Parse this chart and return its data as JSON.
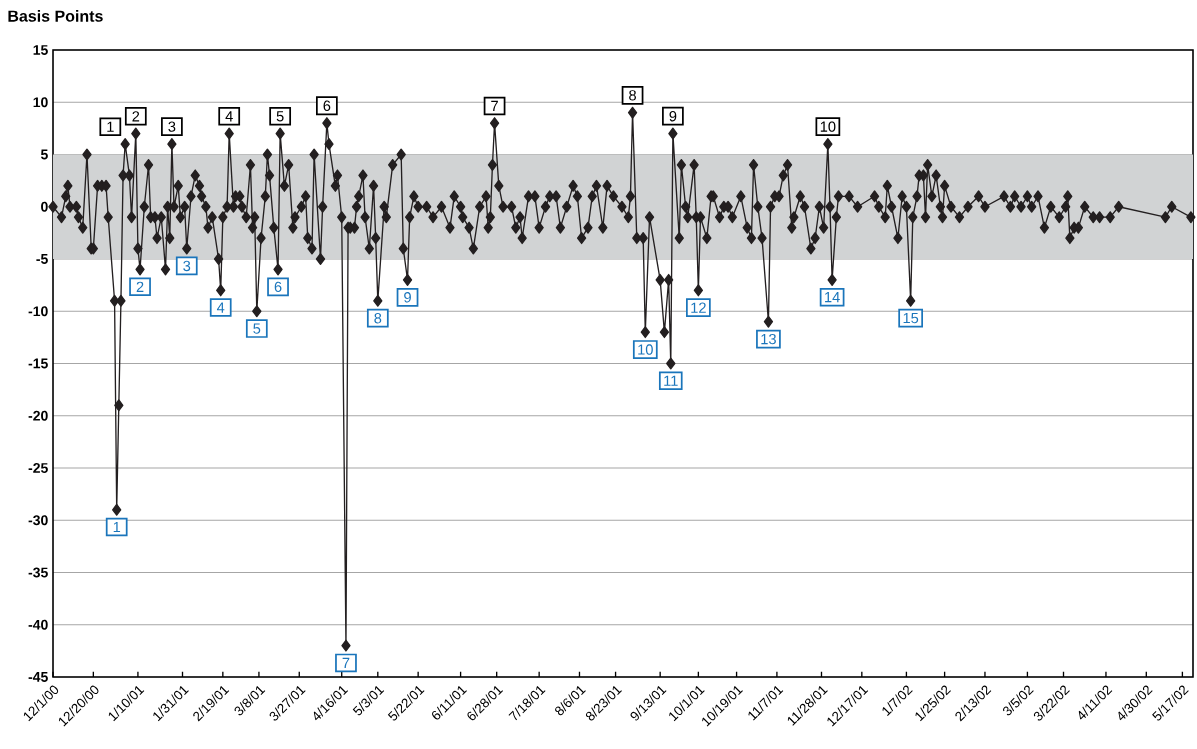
{
  "chart_data": {
    "type": "line",
    "ylabel": "Basis Points",
    "color": "#231f20",
    "marker": "diamond",
    "line_style": "solid",
    "grid": "y",
    "xlim": [
      "2000-12-01",
      "2002-05-22"
    ],
    "ylim": [
      -45,
      15
    ],
    "yticks": [
      -45,
      -40,
      -35,
      -30,
      -25,
      -20,
      -15,
      -10,
      -5,
      0,
      5,
      10,
      15
    ],
    "xticks": [
      {
        "value": "2000-12-01",
        "label": "12/1/00"
      },
      {
        "value": "2000-12-20",
        "label": "12/20/00"
      },
      {
        "value": "2001-01-10",
        "label": "1/10/01"
      },
      {
        "value": "2001-01-31",
        "label": "1/31/01"
      },
      {
        "value": "2001-02-19",
        "label": "2/19/01"
      },
      {
        "value": "2001-03-08",
        "label": "3/8/01"
      },
      {
        "value": "2001-03-27",
        "label": "3/27/01"
      },
      {
        "value": "2001-04-16",
        "label": "4/16/01"
      },
      {
        "value": "2001-05-03",
        "label": "5/3/01"
      },
      {
        "value": "2001-05-22",
        "label": "5/22/01"
      },
      {
        "value": "2001-06-11",
        "label": "6/11/01"
      },
      {
        "value": "2001-06-28",
        "label": "6/28/01"
      },
      {
        "value": "2001-07-18",
        "label": "7/18/01"
      },
      {
        "value": "2001-08-06",
        "label": "8/6/01"
      },
      {
        "value": "2001-08-23",
        "label": "8/23/01"
      },
      {
        "value": "2001-09-13",
        "label": "9/13/01"
      },
      {
        "value": "2001-10-01",
        "label": "10/1/01"
      },
      {
        "value": "2001-10-19",
        "label": "10/19/01"
      },
      {
        "value": "2001-11-07",
        "label": "11/7/01"
      },
      {
        "value": "2001-11-28",
        "label": "11/28/01"
      },
      {
        "value": "2001-12-17",
        "label": "12/17/01"
      },
      {
        "value": "2002-01-07",
        "label": "1/7/02"
      },
      {
        "value": "2002-01-25",
        "label": "1/25/02"
      },
      {
        "value": "2002-02-13",
        "label": "2/13/02"
      },
      {
        "value": "2002-03-05",
        "label": "3/5/02"
      },
      {
        "value": "2002-03-22",
        "label": "3/22/02"
      },
      {
        "value": "2002-04-11",
        "label": "4/11/02"
      },
      {
        "value": "2002-04-30",
        "label": "4/30/02"
      },
      {
        "value": "2002-05-17",
        "label": "5/17/02"
      }
    ],
    "bands": [
      {
        "axis": "y",
        "from": -5,
        "to": 5,
        "color": "#d1d3d4"
      }
    ],
    "x": [
      "2000-12-01",
      "2000-12-05",
      "2000-12-07",
      "2000-12-08",
      "2000-12-09",
      "2000-12-12",
      "2000-12-13",
      "2000-12-15",
      "2000-12-17",
      "2000-12-19",
      "2000-12-20",
      "2000-12-22",
      "2000-12-24",
      "2000-12-26",
      "2000-12-27",
      "2000-12-30",
      "2000-12-31",
      "2001-01-01",
      "2001-01-02",
      "2001-01-03",
      "2001-01-04",
      "2001-01-06",
      "2001-01-07",
      "2001-01-09",
      "2001-01-10",
      "2001-01-11",
      "2001-01-13",
      "2001-01-15",
      "2001-01-16",
      "2001-01-18",
      "2001-01-19",
      "2001-01-21",
      "2001-01-23",
      "2001-01-24",
      "2001-01-25",
      "2001-01-26",
      "2001-01-27",
      "2001-01-29",
      "2001-01-30",
      "2001-02-01",
      "2001-02-02",
      "2001-02-04",
      "2001-02-06",
      "2001-02-08",
      "2001-02-09",
      "2001-02-11",
      "2001-02-12",
      "2001-02-14",
      "2001-02-17",
      "2001-02-18",
      "2001-02-19",
      "2001-02-21",
      "2001-02-22",
      "2001-02-24",
      "2001-02-25",
      "2001-02-27",
      "2001-02-28",
      "2001-03-02",
      "2001-03-04",
      "2001-03-05",
      "2001-03-06",
      "2001-03-07",
      "2001-03-09",
      "2001-03-11",
      "2001-03-12",
      "2001-03-13",
      "2001-03-15",
      "2001-03-17",
      "2001-03-18",
      "2001-03-20",
      "2001-03-22",
      "2001-03-24",
      "2001-03-25",
      "2001-03-28",
      "2001-03-30",
      "2001-03-31",
      "2001-04-02",
      "2001-04-03",
      "2001-04-06",
      "2001-04-07",
      "2001-04-09",
      "2001-04-10",
      "2001-04-13",
      "2001-04-14",
      "2001-04-16",
      "2001-04-18",
      "2001-04-19",
      "2001-04-20",
      "2001-04-22",
      "2001-04-23",
      "2001-04-24",
      "2001-04-26",
      "2001-04-27",
      "2001-04-29",
      "2001-05-01",
      "2001-05-02",
      "2001-05-03",
      "2001-05-06",
      "2001-05-07",
      "2001-05-10",
      "2001-05-14",
      "2001-05-15",
      "2001-05-17",
      "2001-05-18",
      "2001-05-20",
      "2001-05-22",
      "2001-05-26",
      "2001-05-29",
      "2001-06-02",
      "2001-06-06",
      "2001-06-08",
      "2001-06-11",
      "2001-06-12",
      "2001-06-15",
      "2001-06-17",
      "2001-06-20",
      "2001-06-23",
      "2001-06-24",
      "2001-06-25",
      "2001-06-26",
      "2001-06-27",
      "2001-06-29",
      "2001-07-01",
      "2001-07-05",
      "2001-07-07",
      "2001-07-09",
      "2001-07-10",
      "2001-07-13",
      "2001-07-16",
      "2001-07-18",
      "2001-07-21",
      "2001-07-23",
      "2001-07-26",
      "2001-07-28",
      "2001-07-31",
      "2001-08-03",
      "2001-08-05",
      "2001-08-07",
      "2001-08-10",
      "2001-08-12",
      "2001-08-14",
      "2001-08-17",
      "2001-08-19",
      "2001-08-22",
      "2001-08-26",
      "2001-08-29",
      "2001-08-30",
      "2001-08-31",
      "2001-09-02",
      "2001-09-05",
      "2001-09-06",
      "2001-09-08",
      "2001-09-13",
      "2001-09-15",
      "2001-09-17",
      "2001-09-18",
      "2001-09-19",
      "2001-09-22",
      "2001-09-23",
      "2001-09-25",
      "2001-09-26",
      "2001-09-29",
      "2001-09-30",
      "2001-10-01",
      "2001-10-02",
      "2001-10-05",
      "2001-10-07",
      "2001-10-08",
      "2001-10-11",
      "2001-10-13",
      "2001-10-15",
      "2001-10-17",
      "2001-10-21",
      "2001-10-24",
      "2001-10-26",
      "2001-10-27",
      "2001-10-29",
      "2001-10-31",
      "2001-11-03",
      "2001-11-04",
      "2001-11-06",
      "2001-11-08",
      "2001-11-10",
      "2001-11-12",
      "2001-11-14",
      "2001-11-15",
      "2001-11-18",
      "2001-11-20",
      "2001-11-23",
      "2001-11-25",
      "2001-11-27",
      "2001-11-29",
      "2001-12-01",
      "2001-12-02",
      "2001-12-03",
      "2001-12-05",
      "2001-12-06",
      "2001-12-11",
      "2001-12-15",
      "2001-12-23",
      "2001-12-25",
      "2001-12-28",
      "2001-12-29",
      "2001-12-31",
      "2002-01-03",
      "2002-01-05",
      "2002-01-07",
      "2002-01-09",
      "2002-01-10",
      "2002-01-12",
      "2002-01-13",
      "2002-01-15",
      "2002-01-16",
      "2002-01-17",
      "2002-01-19",
      "2002-01-21",
      "2002-01-23",
      "2002-01-24",
      "2002-01-25",
      "2002-01-28",
      "2002-02-01",
      "2002-02-05",
      "2002-02-10",
      "2002-02-13",
      "2002-02-22",
      "2002-02-25",
      "2002-02-27",
      "2002-03-02",
      "2002-03-05",
      "2002-03-07",
      "2002-03-10",
      "2002-03-13",
      "2002-03-16",
      "2002-03-20",
      "2002-03-23",
      "2002-03-24",
      "2002-03-25",
      "2002-03-27",
      "2002-03-29",
      "2002-04-01",
      "2002-04-05",
      "2002-04-08",
      "2002-04-13",
      "2002-04-17",
      "2002-05-09",
      "2002-05-12",
      "2002-05-21"
    ],
    "values": [
      0,
      -1,
      1,
      2,
      0,
      0,
      -1,
      -2,
      5,
      -4,
      -4,
      2,
      2,
      2,
      -1,
      -9,
      -29,
      -19,
      -9,
      3,
      6,
      3,
      -1,
      7,
      -4,
      -6,
      0,
      4,
      -1,
      -1,
      -3,
      -1,
      -6,
      0,
      -3,
      6,
      0,
      2,
      -1,
      0,
      -4,
      1,
      3,
      2,
      1,
      0,
      -2,
      -1,
      -5,
      -8,
      -1,
      0,
      7,
      0,
      1,
      1,
      0,
      -1,
      4,
      -2,
      -1,
      -10,
      -3,
      1,
      5,
      3,
      -2,
      -6,
      7,
      2,
      4,
      -2,
      -1,
      0,
      1,
      -3,
      -4,
      5,
      -5,
      0,
      8,
      6,
      2,
      3,
      -1,
      -42,
      -2,
      -2,
      -2,
      0,
      1,
      3,
      -1,
      -4,
      2,
      -3,
      -9,
      0,
      -1,
      4,
      5,
      -4,
      -7,
      -1,
      1,
      0,
      0,
      -1,
      0,
      -2,
      1,
      0,
      -1,
      -2,
      -4,
      0,
      1,
      -2,
      -1,
      4,
      8,
      2,
      0,
      0,
      -2,
      -1,
      -3,
      1,
      1,
      -2,
      0,
      1,
      1,
      -2,
      0,
      2,
      1,
      -3,
      -2,
      1,
      2,
      -2,
      2,
      1,
      0,
      -1,
      1,
      9,
      -3,
      -3,
      -12,
      -1,
      -7,
      -12,
      -7,
      -15,
      7,
      -3,
      4,
      0,
      -1,
      4,
      -1,
      -8,
      -1,
      -3,
      1,
      1,
      -1,
      0,
      0,
      -1,
      1,
      -2,
      -3,
      4,
      0,
      -3,
      -11,
      0,
      1,
      1,
      3,
      4,
      -2,
      -1,
      1,
      0,
      -4,
      -3,
      0,
      -2,
      6,
      0,
      -7,
      -1,
      1,
      1,
      0,
      1,
      0,
      -1,
      2,
      0,
      -3,
      1,
      0,
      -9,
      -1,
      1,
      3,
      3,
      -1,
      4,
      1,
      3,
      0,
      -1,
      2,
      0,
      -1,
      0,
      1,
      0,
      1,
      0,
      1,
      0,
      1,
      0,
      1,
      -2,
      0,
      -1,
      0,
      1,
      -3,
      -2,
      -2,
      0,
      -1,
      -1,
      -1,
      0,
      -1,
      0,
      -1
    ],
    "annotations": [
      {
        "text": "1",
        "x": "2001-01-04",
        "y": 6
      },
      {
        "text": "2",
        "x": "2001-01-09",
        "y": 7
      },
      {
        "text": "3",
        "x": "2001-01-26",
        "y": 6
      },
      {
        "text": "4",
        "x": "2001-02-22",
        "y": 7
      },
      {
        "text": "5",
        "x": "2001-03-18",
        "y": 7
      },
      {
        "text": "6",
        "x": "2001-04-09",
        "y": 8
      },
      {
        "text": "7",
        "x": "2001-06-27",
        "y": 8
      },
      {
        "text": "8",
        "x": "2001-08-31",
        "y": 9
      },
      {
        "text": "9",
        "x": "2001-09-19",
        "y": 7
      },
      {
        "text": "10",
        "x": "2001-12-01",
        "y": 6
      },
      {
        "text": "1",
        "x": "2000-12-31",
        "y": -29
      },
      {
        "text": "2",
        "x": "2001-01-11",
        "y": -6
      },
      {
        "text": "3",
        "x": "2001-02-02",
        "y": -4
      },
      {
        "text": "4",
        "x": "2001-02-18",
        "y": -8
      },
      {
        "text": "5",
        "x": "2001-03-07",
        "y": -10
      },
      {
        "text": "6",
        "x": "2001-03-17",
        "y": -6
      },
      {
        "text": "7",
        "x": "2001-04-18",
        "y": -42
      },
      {
        "text": "8",
        "x": "2001-05-03",
        "y": -9
      },
      {
        "text": "9",
        "x": "2001-05-17",
        "y": -7
      },
      {
        "text": "10",
        "x": "2001-09-06",
        "y": -12
      },
      {
        "text": "11",
        "x": "2001-09-18",
        "y": -15
      },
      {
        "text": "12",
        "x": "2001-10-01",
        "y": -8
      },
      {
        "text": "13",
        "x": "2001-11-03",
        "y": -11
      },
      {
        "text": "14",
        "x": "2001-12-03",
        "y": -7
      },
      {
        "text": "15",
        "x": "2002-01-09",
        "y": -9
      }
    ]
  }
}
